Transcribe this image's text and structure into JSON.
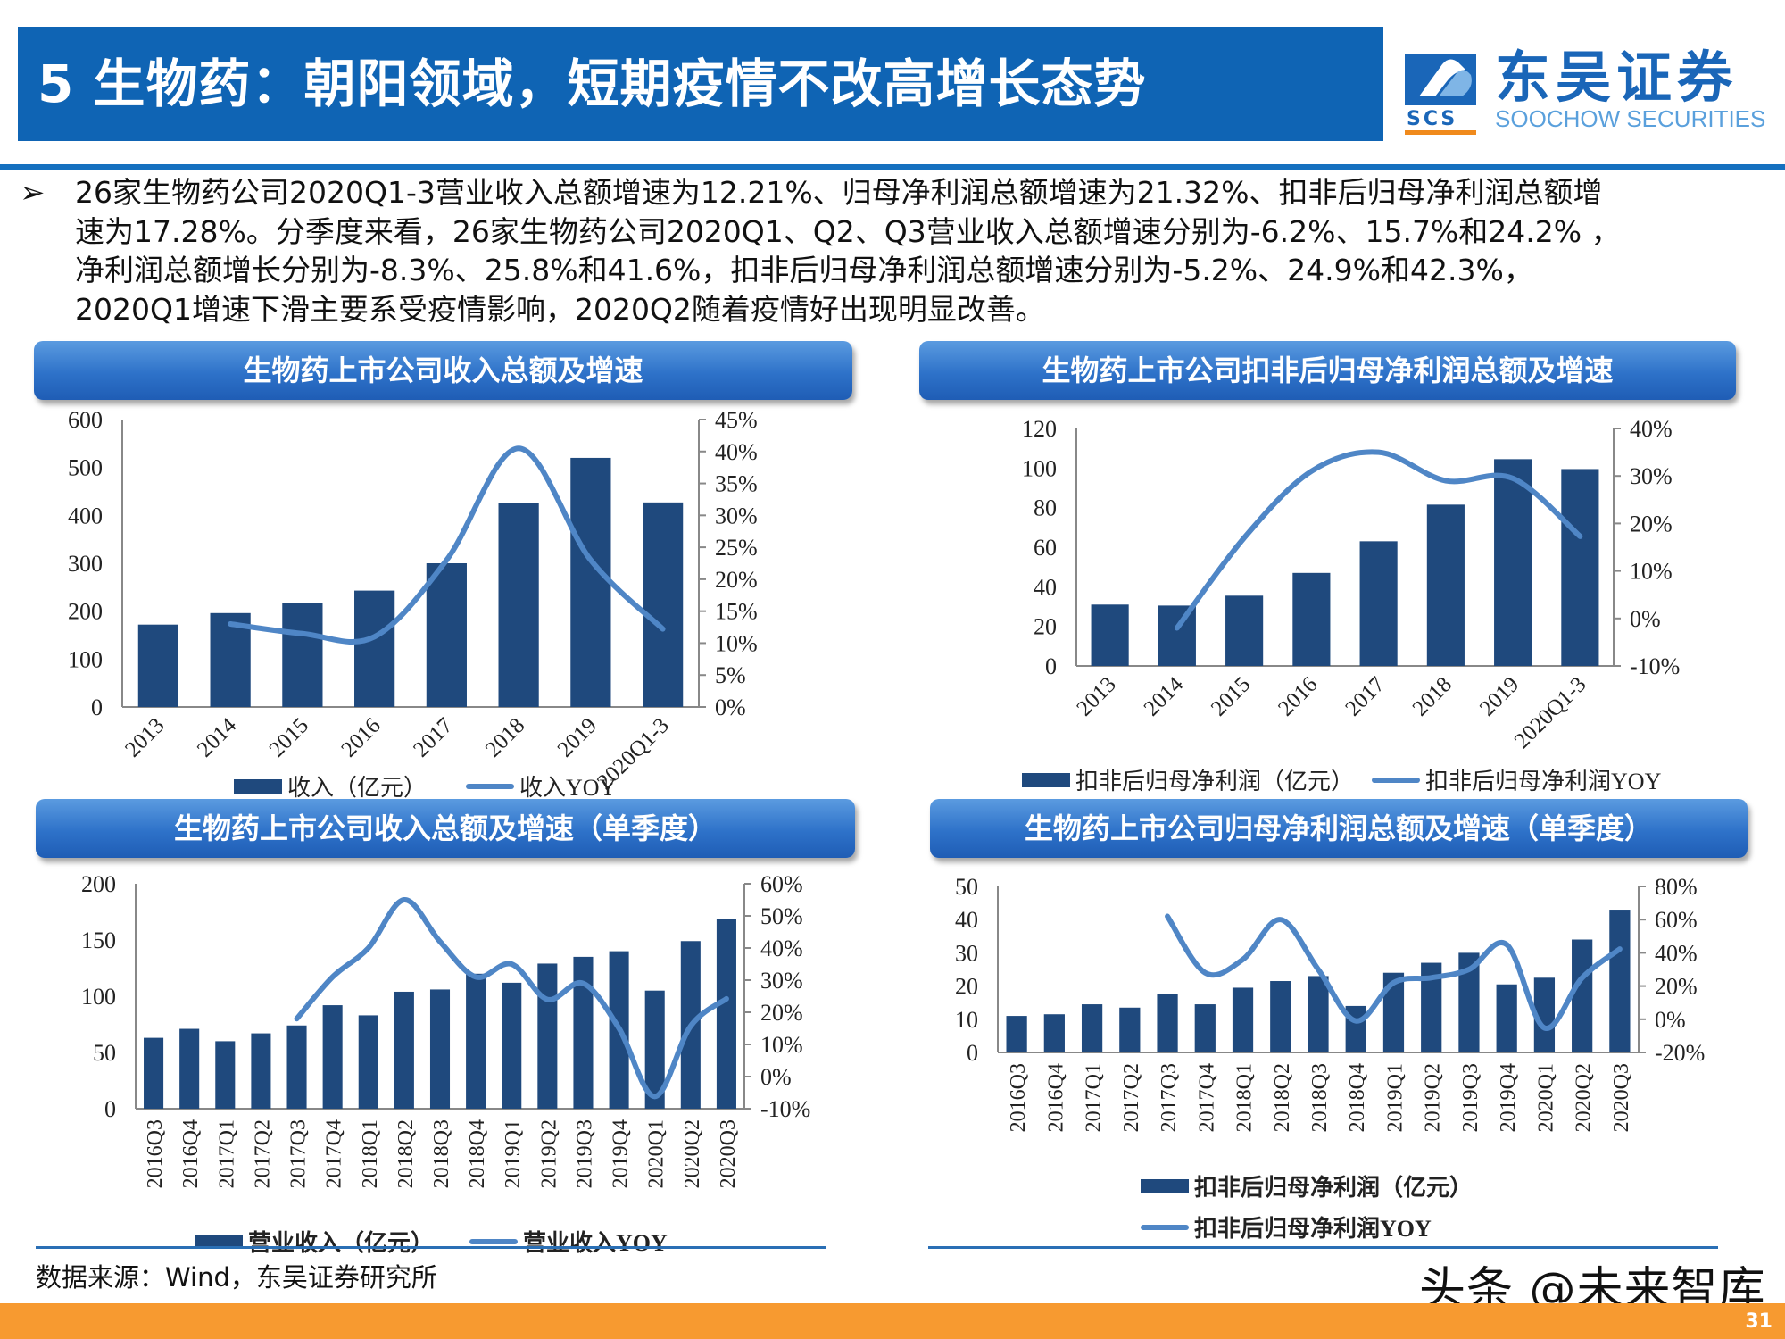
{
  "header": {
    "title": "5 生物药：朝阳领域，短期疫情不改高增长态势",
    "logo_cn": "东吴证券",
    "logo_en": "SOOCHOW SECURITIES",
    "logo_mark": "SCS"
  },
  "summary": {
    "bullet_icon": "arrow-bullet-icon",
    "lines": [
      "26家生物药公司2020Q1-3营业收入总额增速为12.21%、归母净利润总额增速为21.32%、扣非后归母净利润总额增",
      "速为17.28%。分季度来看，26家生物药公司2020Q1、Q2、Q3营业收入总额增速分别为-6.2%、15.7%和24.2% ，",
      "净利润总额增长分别为-8.3%、25.8%和41.6%，扣非后归母净利润总额增速分别为-5.2%、24.9%和42.3%，",
      "2020Q1增速下滑主要系受疫情影响，2020Q2随着疫情好出现明显改善。"
    ]
  },
  "colors": {
    "bar": "#1f497d",
    "line": "#4f86c6",
    "header": "#0f64b4",
    "footer": "#f79a30"
  },
  "chart_data": [
    {
      "type": "bar+line",
      "title": "生物药上市公司收入总额及增速",
      "categories": [
        "2013",
        "2014",
        "2015",
        "2016",
        "2017",
        "2018",
        "2019",
        "2020Q1-3"
      ],
      "series": [
        {
          "name": "收入（亿元）",
          "type": "bar",
          "axis": "left",
          "values": [
            172,
            196,
            218,
            243,
            300,
            425,
            520,
            427
          ]
        },
        {
          "name": "收入YOY",
          "type": "line",
          "axis": "right",
          "values": [
            null,
            13,
            11.5,
            11,
            23,
            40.5,
            23,
            12.21
          ]
        }
      ],
      "ylim": [
        0,
        600
      ],
      "yticks": [
        "0",
        "100",
        "200",
        "300",
        "400",
        "500",
        "600"
      ],
      "y2lim": [
        0,
        45
      ],
      "y2ticks": [
        "0%",
        "5%",
        "10%",
        "15%",
        "20%",
        "25%",
        "30%",
        "35%",
        "40%",
        "45%"
      ],
      "legend": "bottom"
    },
    {
      "type": "bar+line",
      "title": "生物药上市公司扣非后归母净利润总额及增速",
      "categories": [
        "2013",
        "2014",
        "2015",
        "2016",
        "2017",
        "2018",
        "2019",
        "2020Q1-3"
      ],
      "series": [
        {
          "name": "扣非后归母净利润（亿元）",
          "type": "bar",
          "axis": "left",
          "values": [
            31,
            30.5,
            35.5,
            47,
            63,
            81.5,
            104.5,
            99.5
          ]
        },
        {
          "name": "扣非后归母净利润YOY",
          "type": "line",
          "axis": "right",
          "values": [
            null,
            -2,
            17,
            31,
            35,
            29,
            29.5,
            17.28
          ]
        }
      ],
      "ylim": [
        0,
        120
      ],
      "yticks": [
        "0",
        "20",
        "40",
        "60",
        "80",
        "100",
        "120"
      ],
      "y2lim": [
        -10,
        40
      ],
      "y2ticks": [
        "-10%",
        "0%",
        "10%",
        "20%",
        "30%",
        "40%"
      ],
      "legend": "bottom"
    },
    {
      "type": "bar+line",
      "title": "生物药上市公司收入总额及增速（单季度）",
      "categories": [
        "2016Q3",
        "2016Q4",
        "2017Q1",
        "2017Q2",
        "2017Q3",
        "2017Q4",
        "2018Q1",
        "2018Q2",
        "2018Q3",
        "2018Q4",
        "2019Q1",
        "2019Q2",
        "2019Q3",
        "2019Q4",
        "2020Q1",
        "2020Q2",
        "2020Q3"
      ],
      "series": [
        {
          "name": "营业收入（亿元）",
          "type": "bar",
          "axis": "left",
          "values": [
            63,
            71,
            60,
            67,
            74,
            92,
            83,
            104,
            106,
            120,
            112,
            129,
            135,
            140,
            105,
            149,
            169
          ]
        },
        {
          "name": "营业收入YOY",
          "type": "line",
          "axis": "right",
          "values": [
            null,
            null,
            null,
            null,
            18,
            31,
            40,
            55,
            42,
            31,
            35,
            24,
            29,
            15,
            -6.2,
            15.7,
            24.2
          ]
        }
      ],
      "ylim": [
        0,
        200
      ],
      "yticks": [
        "0",
        "50",
        "100",
        "150",
        "200"
      ],
      "y2lim": [
        -10,
        60
      ],
      "y2ticks": [
        "-10%",
        "0%",
        "10%",
        "20%",
        "30%",
        "40%",
        "50%",
        "60%"
      ],
      "legend": "bottom"
    },
    {
      "type": "bar+line",
      "title": "生物药上市公司归母净利润总额及增速（单季度）",
      "categories": [
        "2016Q3",
        "2016Q4",
        "2017Q1",
        "2017Q2",
        "2017Q3",
        "2017Q4",
        "2018Q1",
        "2018Q2",
        "2018Q3",
        "2018Q4",
        "2019Q1",
        "2019Q2",
        "2019Q3",
        "2019Q4",
        "2020Q1",
        "2020Q2",
        "2020Q3"
      ],
      "series": [
        {
          "name": "扣非后归母净利润（亿元）",
          "type": "bar",
          "axis": "left",
          "values": [
            11,
            11.5,
            14.5,
            13.5,
            17.5,
            14.5,
            19.5,
            21.5,
            23,
            14,
            24,
            27,
            30,
            20.5,
            22.5,
            34,
            43
          ]
        },
        {
          "name": "扣非后归母净利润YOY",
          "type": "line",
          "axis": "right",
          "values": [
            null,
            null,
            null,
            null,
            62,
            28,
            36,
            60,
            30,
            -1,
            22,
            25,
            30,
            45,
            -5.2,
            24.9,
            42.3
          ]
        }
      ],
      "ylim": [
        0,
        50
      ],
      "yticks": [
        "0",
        "10",
        "20",
        "30",
        "40",
        "50"
      ],
      "y2lim": [
        -20,
        80
      ],
      "y2ticks": [
        "-20%",
        "0%",
        "20%",
        "40%",
        "60%",
        "80%"
      ],
      "legend": "bottom"
    }
  ],
  "footer": {
    "source": "数据来源：Wind，东吴证券研究所",
    "watermark": "头条 @未来智库",
    "page_number": "31"
  }
}
